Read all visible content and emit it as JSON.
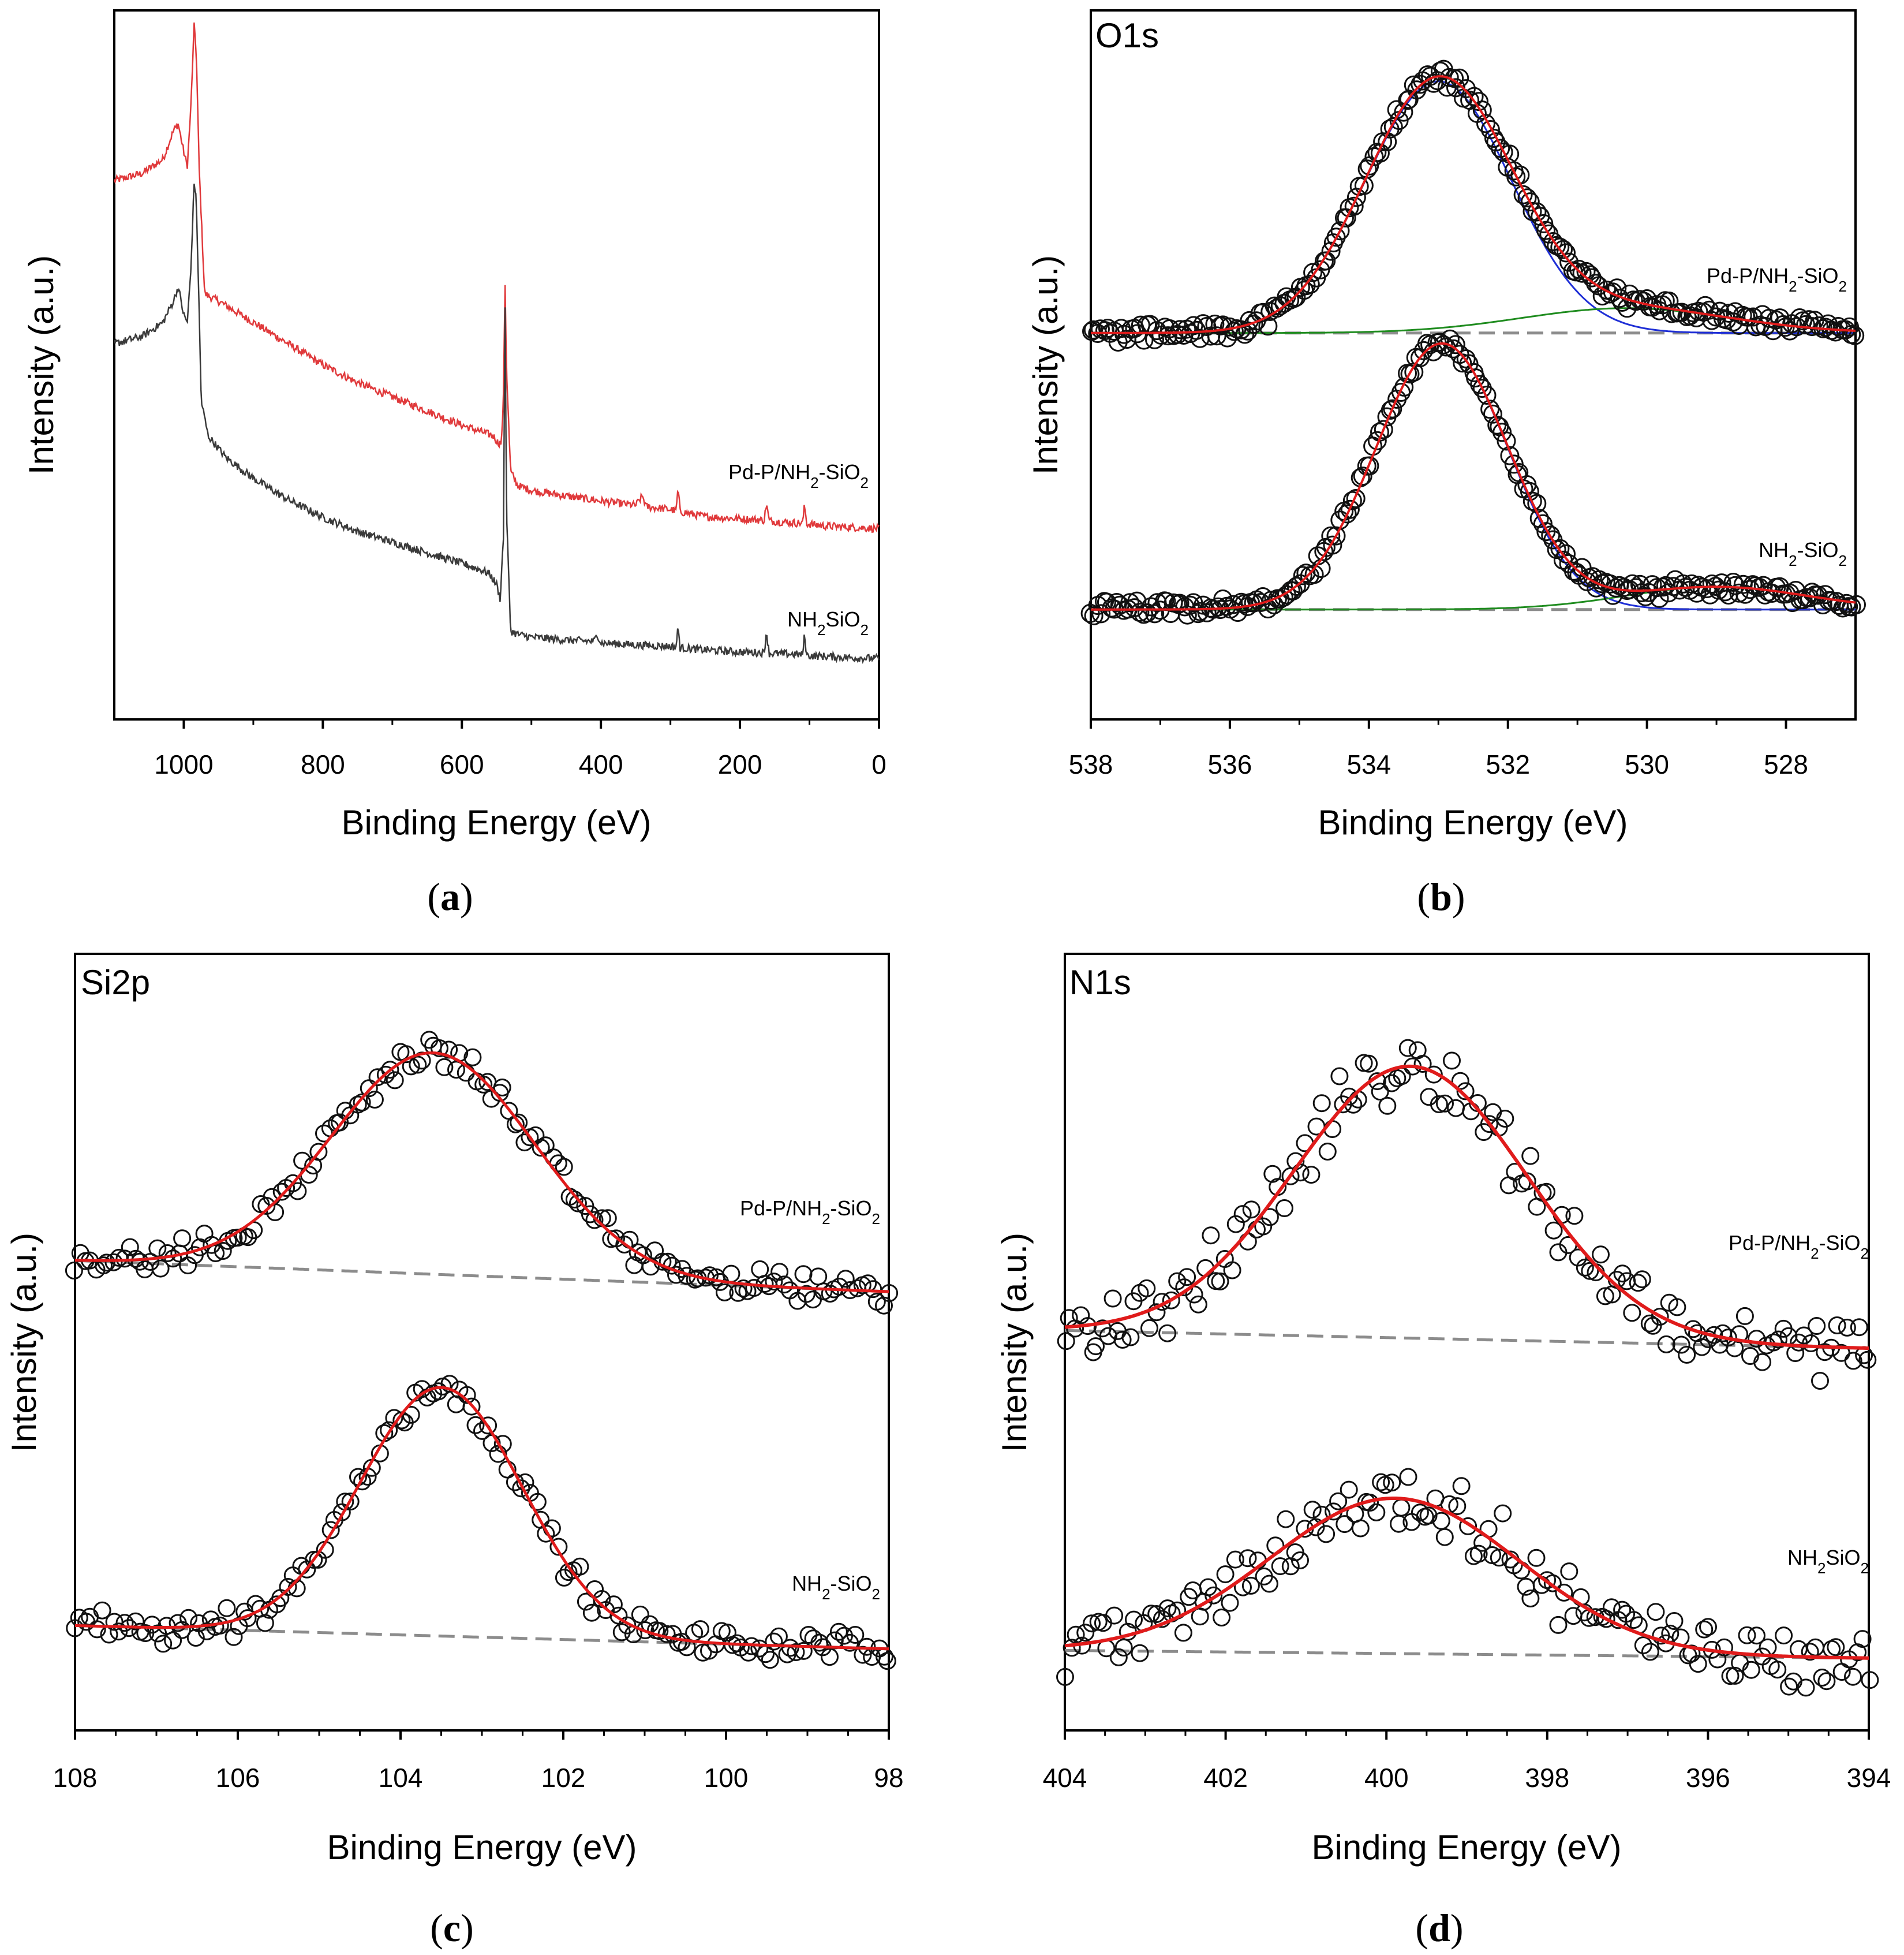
{
  "figure": {
    "captions": [
      "(a)",
      "(b)",
      "(c)",
      "(d)"
    ],
    "colors": {
      "survey_top": "#e0393b",
      "survey_bottom": "#3a3a3a",
      "envelope": "#e01b1b",
      "blue_component": "#1f2fd6",
      "green_component": "#1f8c1f",
      "background": "#8c8c8c",
      "markers": "#111111"
    }
  },
  "chart_data": [
    {
      "panel": "a",
      "type": "line",
      "title": "",
      "xlabel": "Binding Energy (eV)",
      "ylabel": "Intensity (a.u.)",
      "xlim": [
        1100,
        0
      ],
      "ylim": [
        0,
        100
      ],
      "xticks": [
        1000,
        800,
        600,
        400,
        200,
        0
      ],
      "x_reversed": true,
      "series": [
        {
          "name": "Pd-P/NH2-SiO2",
          "label_main": "Pd-P/NH",
          "label_sub1": "2",
          "label_mid": "-SiO",
          "label_sub2": "2",
          "color": "#e0393b",
          "points": [
            [
              1100,
              76
            ],
            [
              1060,
              77
            ],
            [
              1030,
              79
            ],
            [
              1015,
              83
            ],
            [
              1008,
              84
            ],
            [
              1000,
              80
            ],
            [
              995,
              78
            ],
            [
              990,
              86
            ],
            [
              985,
              98
            ],
            [
              982,
              94
            ],
            [
              978,
              78
            ],
            [
              970,
              60
            ],
            [
              950,
              59
            ],
            [
              900,
              56
            ],
            [
              850,
              53
            ],
            [
              800,
              50
            ],
            [
              750,
              47.5
            ],
            [
              700,
              45.5
            ],
            [
              650,
              43.5
            ],
            [
              600,
              41.5
            ],
            [
              570,
              40.5
            ],
            [
              555,
              40
            ],
            [
              548,
              39
            ],
            [
              543,
              39
            ],
            [
              540,
              46
            ],
            [
              538,
              63
            ],
            [
              536,
              50
            ],
            [
              530,
              35
            ],
            [
              520,
              33
            ],
            [
              500,
              32.3
            ],
            [
              450,
              31.5
            ],
            [
              400,
              30.8
            ],
            [
              350,
              30.2
            ],
            [
              340,
              31.5
            ],
            [
              335,
              30
            ],
            [
              300,
              29.6
            ],
            [
              292,
              29.4
            ],
            [
              289,
              32.5
            ],
            [
              286,
              29.3
            ],
            [
              250,
              28.6
            ],
            [
              200,
              28.3
            ],
            [
              165,
              28.1
            ],
            [
              162,
              30.5
            ],
            [
              158,
              28
            ],
            [
              120,
              27.7
            ],
            [
              110,
              27.7
            ],
            [
              107,
              30.2
            ],
            [
              104,
              27.6
            ],
            [
              80,
              27.3
            ],
            [
              40,
              27.1
            ],
            [
              0,
              26.9
            ]
          ]
        },
        {
          "name": "NH2SiO2",
          "label_main": "NH",
          "label_sub1": "2",
          "label_mid": "SiO",
          "label_sub2": "2",
          "color": "#3a3a3a",
          "points": [
            [
              1100,
              53
            ],
            [
              1060,
              54
            ],
            [
              1030,
              56
            ],
            [
              1015,
              59
            ],
            [
              1008,
              61
            ],
            [
              1000,
              57
            ],
            [
              995,
              56
            ],
            [
              990,
              63
            ],
            [
              985,
              76
            ],
            [
              982,
              73
            ],
            [
              978,
              58
            ],
            [
              975,
              45
            ],
            [
              965,
              40
            ],
            [
              940,
              37
            ],
            [
              900,
              34
            ],
            [
              850,
              31
            ],
            [
              800,
              28.5
            ],
            [
              750,
              26.5
            ],
            [
              700,
              25
            ],
            [
              650,
              23.5
            ],
            [
              600,
              22
            ],
            [
              570,
              21
            ],
            [
              560,
              20.5
            ],
            [
              550,
              19
            ],
            [
              545,
              17
            ],
            [
              540,
              26
            ],
            [
              538,
              62
            ],
            [
              536,
              30
            ],
            [
              530,
              12.5
            ],
            [
              520,
              12
            ],
            [
              500,
              11.6
            ],
            [
              450,
              11.2
            ],
            [
              410,
              11
            ],
            [
              405,
              12
            ],
            [
              400,
              10.8
            ],
            [
              350,
              10.5
            ],
            [
              300,
              10.3
            ],
            [
              292,
              10.2
            ],
            [
              289,
              13
            ],
            [
              286,
              10.1
            ],
            [
              250,
              9.8
            ],
            [
              200,
              9.5
            ],
            [
              165,
              9.4
            ],
            [
              162,
              12.5
            ],
            [
              158,
              9.3
            ],
            [
              120,
              9.2
            ],
            [
              110,
              9.1
            ],
            [
              107,
              12
            ],
            [
              104,
              9
            ],
            [
              80,
              8.9
            ],
            [
              40,
              8.7
            ],
            [
              0,
              8.6
            ]
          ]
        }
      ]
    },
    {
      "panel": "b",
      "type": "scatter",
      "title": "O1s",
      "xlabel": "Binding Energy (eV)",
      "ylabel": "Intensity (a.u.)",
      "xlim": [
        538,
        527
      ],
      "ylim": [
        0,
        100
      ],
      "xticks": [
        538,
        536,
        534,
        532,
        530,
        528
      ],
      "x_reversed": true,
      "series": [
        {
          "name": "Pd-P/NH2-SiO2",
          "label_main": "Pd-P/NH",
          "label_sub1": "2",
          "label_mid": "-SiO",
          "label_sub2": "2",
          "baseline": 54.5,
          "peaks": [
            {
              "center": 533.0,
              "sigma": 1.05,
              "height": 35.5,
              "color": "#1f2fd6"
            },
            {
              "center": 530.3,
              "sigma": 1.5,
              "height": 3.5,
              "color": "#1f8c1f"
            }
          ]
        },
        {
          "name": "NH2-SiO2",
          "label_main": "NH",
          "label_sub1": "2",
          "label_mid": "-SiO",
          "label_sub2": "2",
          "baseline": 15.5,
          "peaks": [
            {
              "center": 532.95,
              "sigma": 0.95,
              "height": 37.5,
              "color": "#1f2fd6"
            },
            {
              "center": 529.0,
              "sigma": 1.3,
              "height": 3.2,
              "color": "#1f8c1f"
            }
          ]
        }
      ]
    },
    {
      "panel": "c",
      "type": "scatter",
      "title": "Si2p",
      "xlabel": "Binding Energy (eV)",
      "ylabel": "Intensity (a.u.)",
      "xlim": [
        108,
        98
      ],
      "ylim": [
        0,
        100
      ],
      "xticks": [
        108,
        106,
        104,
        102,
        100,
        98
      ],
      "x_reversed": true,
      "series": [
        {
          "name": "Pd-P/NH2-SiO2",
          "label_main": "Pd-P/NH",
          "label_sub1": "2",
          "label_mid": "-SiO",
          "label_sub2": "2",
          "baseline_left": 60.5,
          "baseline_right": 56.5,
          "peaks": [
            {
              "center": 103.6,
              "sigma": 1.25,
              "height": 28.5
            }
          ]
        },
        {
          "name": "NH2-SiO2",
          "label_main": "NH",
          "label_sub1": "2",
          "label_mid": "-SiO",
          "label_sub2": "2",
          "baseline_left": 13.5,
          "baseline_right": 10.5,
          "peaks": [
            {
              "center": 103.5,
              "sigma": 1.0,
              "height": 32
            }
          ]
        }
      ]
    },
    {
      "panel": "d",
      "type": "scatter",
      "title": "N1s",
      "xlabel": "Binding Energy (eV)",
      "ylabel": "Intensity (a.u.)",
      "xlim": [
        404,
        394
      ],
      "ylim": [
        0,
        100
      ],
      "xticks": [
        404,
        402,
        400,
        398,
        396,
        394
      ],
      "x_reversed": true,
      "series": [
        {
          "name": "Pd-P/NH2-SiO2",
          "label_main": "Pd-P/NH",
          "label_sub1": "2",
          "label_mid": "-SiO",
          "label_sub2": "2",
          "baseline_left": 51.5,
          "baseline_right": 49.2,
          "peaks": [
            {
              "center": 399.7,
              "sigma": 1.45,
              "height": 35
            }
          ]
        },
        {
          "name": "NH2SiO2",
          "label_main": "NH",
          "label_sub1": "2",
          "label_mid": "SiO",
          "label_sub2": "2",
          "baseline_left": 10.3,
          "baseline_right": 9.3,
          "peaks": [
            {
              "center": 399.9,
              "sigma": 1.55,
              "height": 20
            }
          ]
        }
      ]
    }
  ]
}
